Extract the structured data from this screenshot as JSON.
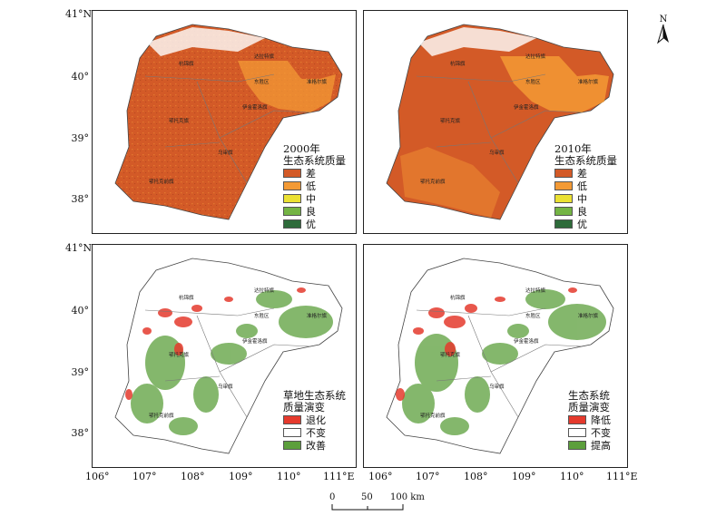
{
  "lat_ticks": [
    "41°N",
    "40°",
    "39°",
    "38°"
  ],
  "lon_ticks": [
    "106°",
    "107°",
    "108°",
    "109°",
    "110°",
    "111°E"
  ],
  "north": "N",
  "scale": {
    "zero": "0",
    "mid": "50",
    "end": "100 km"
  },
  "districts": [
    "杭锦旗",
    "达拉特旗",
    "东胜区",
    "准格尔旗",
    "伊金霍洛旗",
    "鄂托克旗",
    "乌审旗",
    "鄂托克前旗"
  ],
  "panels": [
    {
      "title_line1": "2000年",
      "title_line2": "生态系统质量",
      "classes": [
        "差",
        "低",
        "中",
        "良",
        "优"
      ]
    },
    {
      "title_line1": "2010年",
      "title_line2": "生态系统质量",
      "classes": [
        "差",
        "低",
        "中",
        "良",
        "优"
      ]
    },
    {
      "title_line1": "草地生态系统",
      "title_line2": "质量演变",
      "classes": [
        "退化",
        "不变",
        "改善"
      ]
    },
    {
      "title_line1": "生态系统",
      "title_line2": "质量演变",
      "classes": [
        "降低",
        "不变",
        "提高"
      ]
    }
  ],
  "colors": {
    "poor": "#d35a27",
    "low": "#f39a35",
    "medium": "#ebe133",
    "good": "#74b444",
    "excellent": "#2e6b3a",
    "degrade": "#e53a2d",
    "unchanged": "#ffffff",
    "improve": "#5c9f3c"
  }
}
